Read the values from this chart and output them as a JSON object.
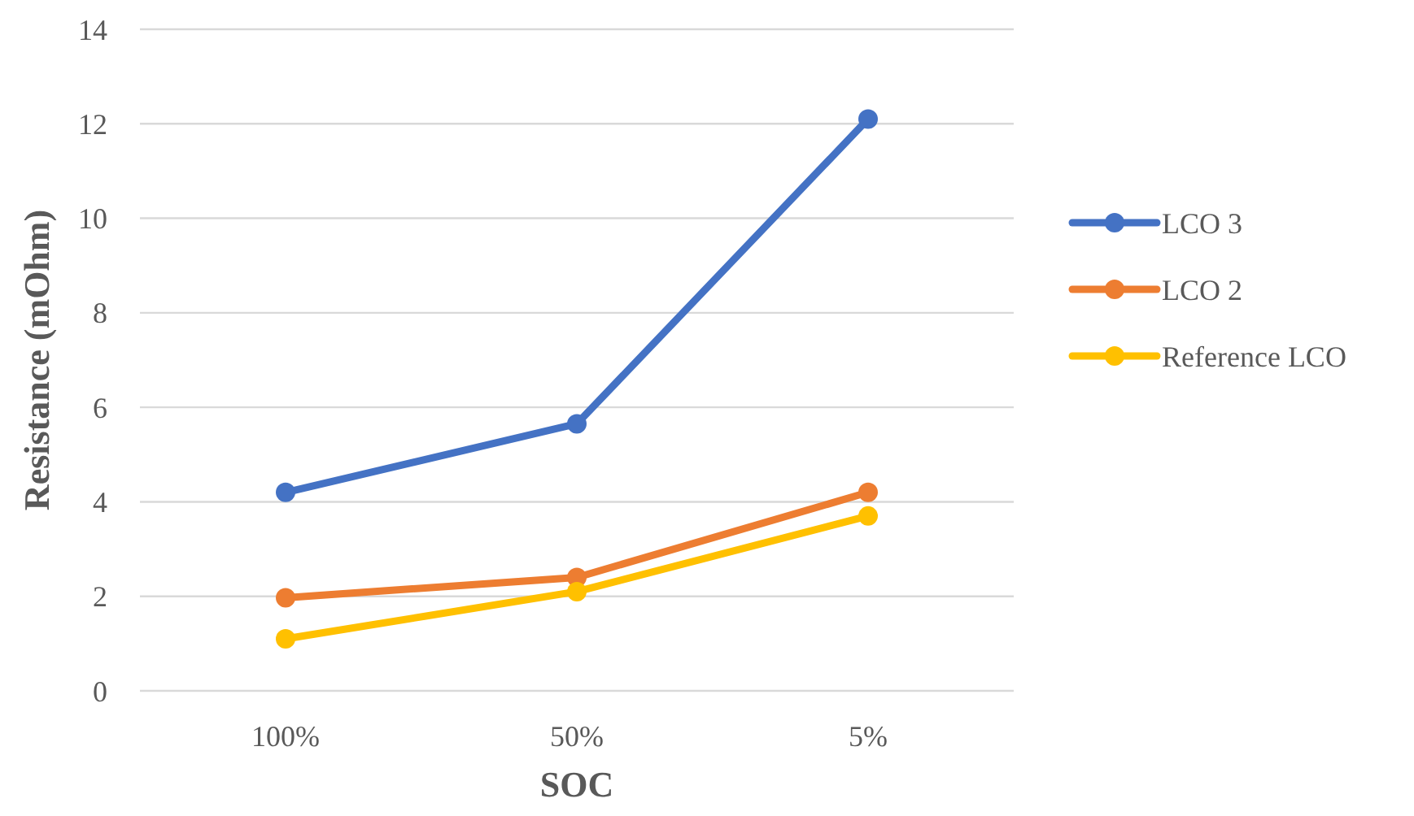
{
  "chart_data": {
    "type": "line",
    "xlabel": "SOC",
    "ylabel": "Resistance (mOhm)",
    "categories": [
      "100%",
      "50%",
      "5%"
    ],
    "series": [
      {
        "name": "LCO 3",
        "color": "#4472c4",
        "values": [
          4.2,
          5.65,
          12.1
        ]
      },
      {
        "name": "LCO 2",
        "color": "#ed7d31",
        "values": [
          1.97,
          2.4,
          4.2
        ]
      },
      {
        "name": "Reference LCO",
        "color": "#ffc000",
        "values": [
          1.1,
          2.1,
          3.7
        ]
      }
    ],
    "ylim": [
      0,
      14
    ],
    "yticks": [
      0,
      2,
      4,
      6,
      8,
      10,
      12,
      14
    ],
    "grid": "y",
    "legend": "right",
    "marker": "circle",
    "line_style": "solid"
  }
}
